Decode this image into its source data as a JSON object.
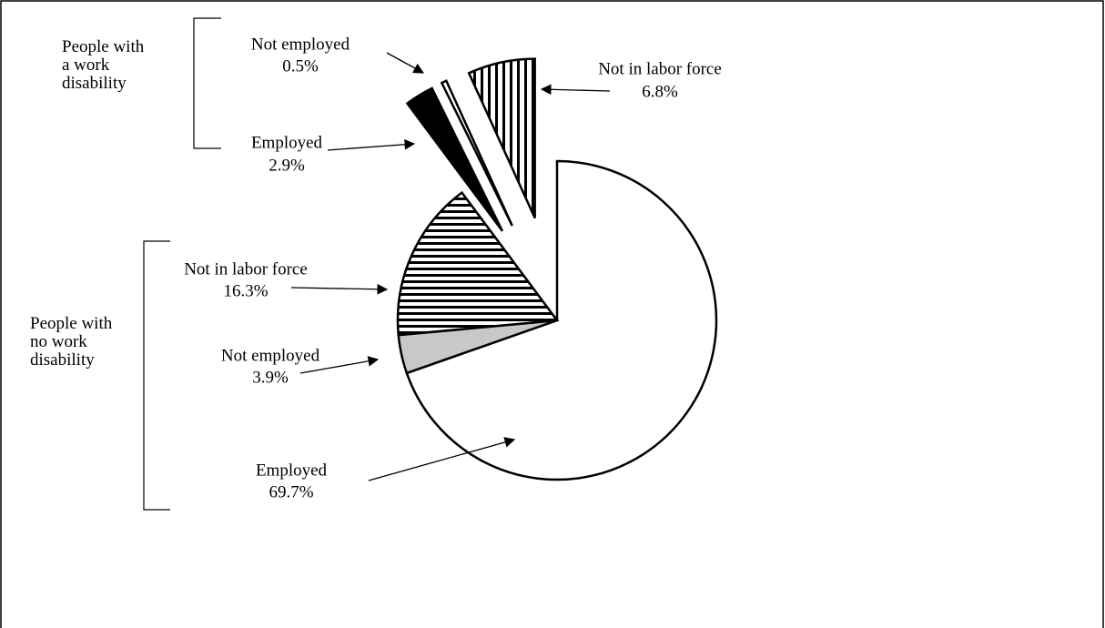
{
  "chart_data": {
    "type": "pie",
    "groups": [
      {
        "label": "People with no work disability",
        "categories": [
          "Employed",
          "Not employed",
          "Not in labor force"
        ],
        "values": [
          69.7,
          3.9,
          16.3
        ],
        "value_labels": [
          "69.7%",
          "3.9%",
          "16.3%"
        ],
        "colors": [
          "#ffffff",
          "#c8c8c8",
          "url(#hstripe)"
        ]
      },
      {
        "label": "People with a work disability",
        "categories": [
          "Employed",
          "Not employed",
          "Not in labor force"
        ],
        "values": [
          2.9,
          0.5,
          6.8
        ],
        "value_labels": [
          "2.9%",
          "0.5%",
          "6.8%"
        ],
        "colors": [
          "#000000",
          "#ffffff",
          "url(#vstripe)"
        ]
      }
    ]
  }
}
